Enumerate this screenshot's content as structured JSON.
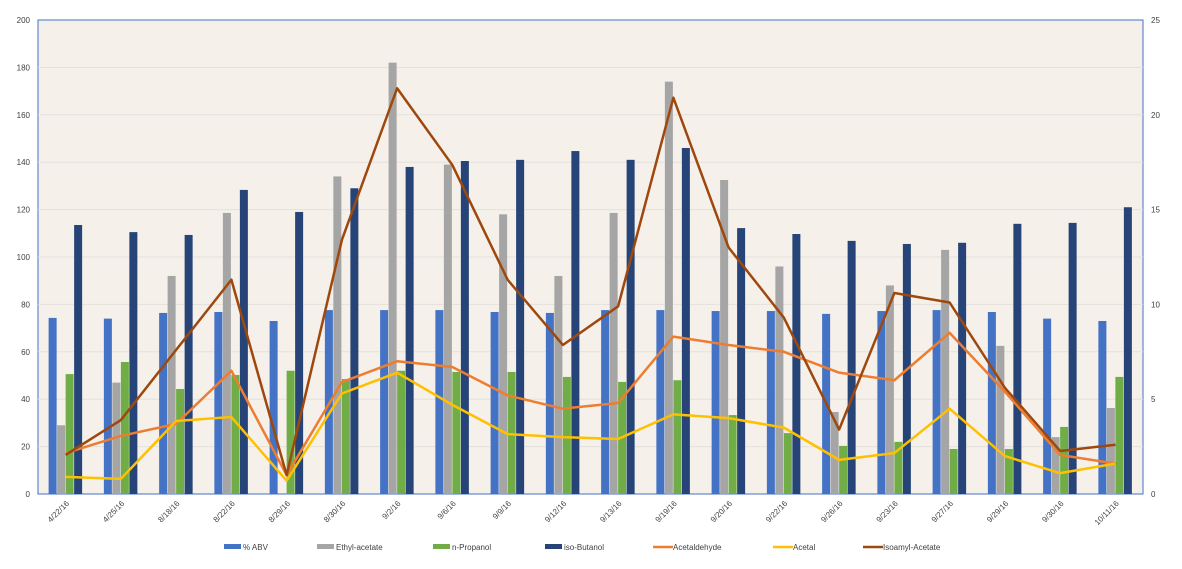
{
  "chart_data": {
    "type": "bar",
    "title": "",
    "xlabel": "",
    "ylabel": "",
    "y2label": "",
    "ylim": [
      0,
      200
    ],
    "y2lim": [
      0,
      25
    ],
    "yticks": [
      0,
      20,
      40,
      60,
      80,
      100,
      120,
      140,
      160,
      180,
      200
    ],
    "y2ticks": [
      0,
      5,
      10,
      15,
      20,
      25
    ],
    "grid": true,
    "legend": "bottom",
    "categories": [
      "4/22/16",
      "4/25/16",
      "8/18/16",
      "8/22/16",
      "8/29/16",
      "8/30/16",
      "9/2/16",
      "9/6/16",
      "9/9/16",
      "9/12/16",
      "9/13/16",
      "9/19/16",
      "9/20/16",
      "9/22/16",
      "9/26/16",
      "9/23/16",
      "9/27/16",
      "9/29/16",
      "9/30/16",
      "10/11/16"
    ],
    "series": [
      {
        "name": "% ABV",
        "type": "bar",
        "axis": "left",
        "color": "#4472C4",
        "values": [
          74.3,
          74,
          76.4,
          76.8,
          73,
          77.6,
          77.6,
          77.6,
          76.8,
          76.4,
          77.6,
          77.6,
          77.2,
          77.2,
          76,
          77.2,
          77.6,
          76.8,
          74,
          73
        ]
      },
      {
        "name": "Ethyl-acetate",
        "type": "bar",
        "axis": "left",
        "color": "#A5A5A5",
        "values": [
          29,
          47,
          92,
          118.6,
          0,
          134,
          182,
          139,
          118,
          92,
          118.6,
          174,
          132.5,
          96,
          34.6,
          88,
          103,
          62.5,
          24,
          36.3
        ]
      },
      {
        "name": "n-Propanol",
        "type": "bar",
        "axis": "left",
        "color": "#70AD47",
        "values": [
          50.6,
          55.7,
          44.3,
          50.2,
          52,
          48.5,
          52,
          51.5,
          51.5,
          49.4,
          47.3,
          48,
          33.3,
          25.7,
          20.3,
          22,
          19,
          19,
          28.3,
          49.4
        ]
      },
      {
        "name": "iso-Butanol",
        "type": "bar",
        "axis": "left",
        "color": "#264478",
        "values": [
          113.5,
          110.5,
          109.3,
          128.3,
          119,
          129,
          138,
          140.5,
          141,
          144.7,
          141,
          146,
          112.2,
          109.7,
          106.8,
          105.5,
          106,
          114,
          114.4,
          121
        ]
      },
      {
        "name": "Acetaldehyde",
        "type": "line",
        "axis": "right",
        "color": "#ED7D31",
        "values": [
          2.16,
          3.06,
          3.7,
          6.5,
          1.0,
          5.9,
          7.0,
          6.7,
          5.2,
          4.5,
          4.8,
          8.3,
          7.86,
          7.5,
          6.4,
          6.0,
          8.5,
          5.4,
          2.06,
          1.6
        ]
      },
      {
        "name": "Acetal",
        "type": "line",
        "axis": "right",
        "color": "#FFC000",
        "values": [
          0.9,
          0.8,
          3.85,
          4.06,
          0.7,
          5.3,
          6.4,
          4.7,
          3.16,
          3.0,
          2.9,
          4.2,
          4.0,
          3.5,
          1.8,
          2.16,
          4.5,
          2.0,
          1.1,
          1.6
        ]
      },
      {
        "name": "Isoamyl-Acetate",
        "type": "line",
        "axis": "right",
        "color": "#9E480E",
        "values": [
          2.06,
          3.9,
          7.6,
          11.3,
          1.0,
          13.4,
          21.4,
          17.35,
          11.3,
          7.86,
          9.9,
          20.9,
          13,
          9.3,
          3.4,
          10.6,
          10.1,
          5.6,
          2.27,
          2.6
        ]
      }
    ]
  }
}
